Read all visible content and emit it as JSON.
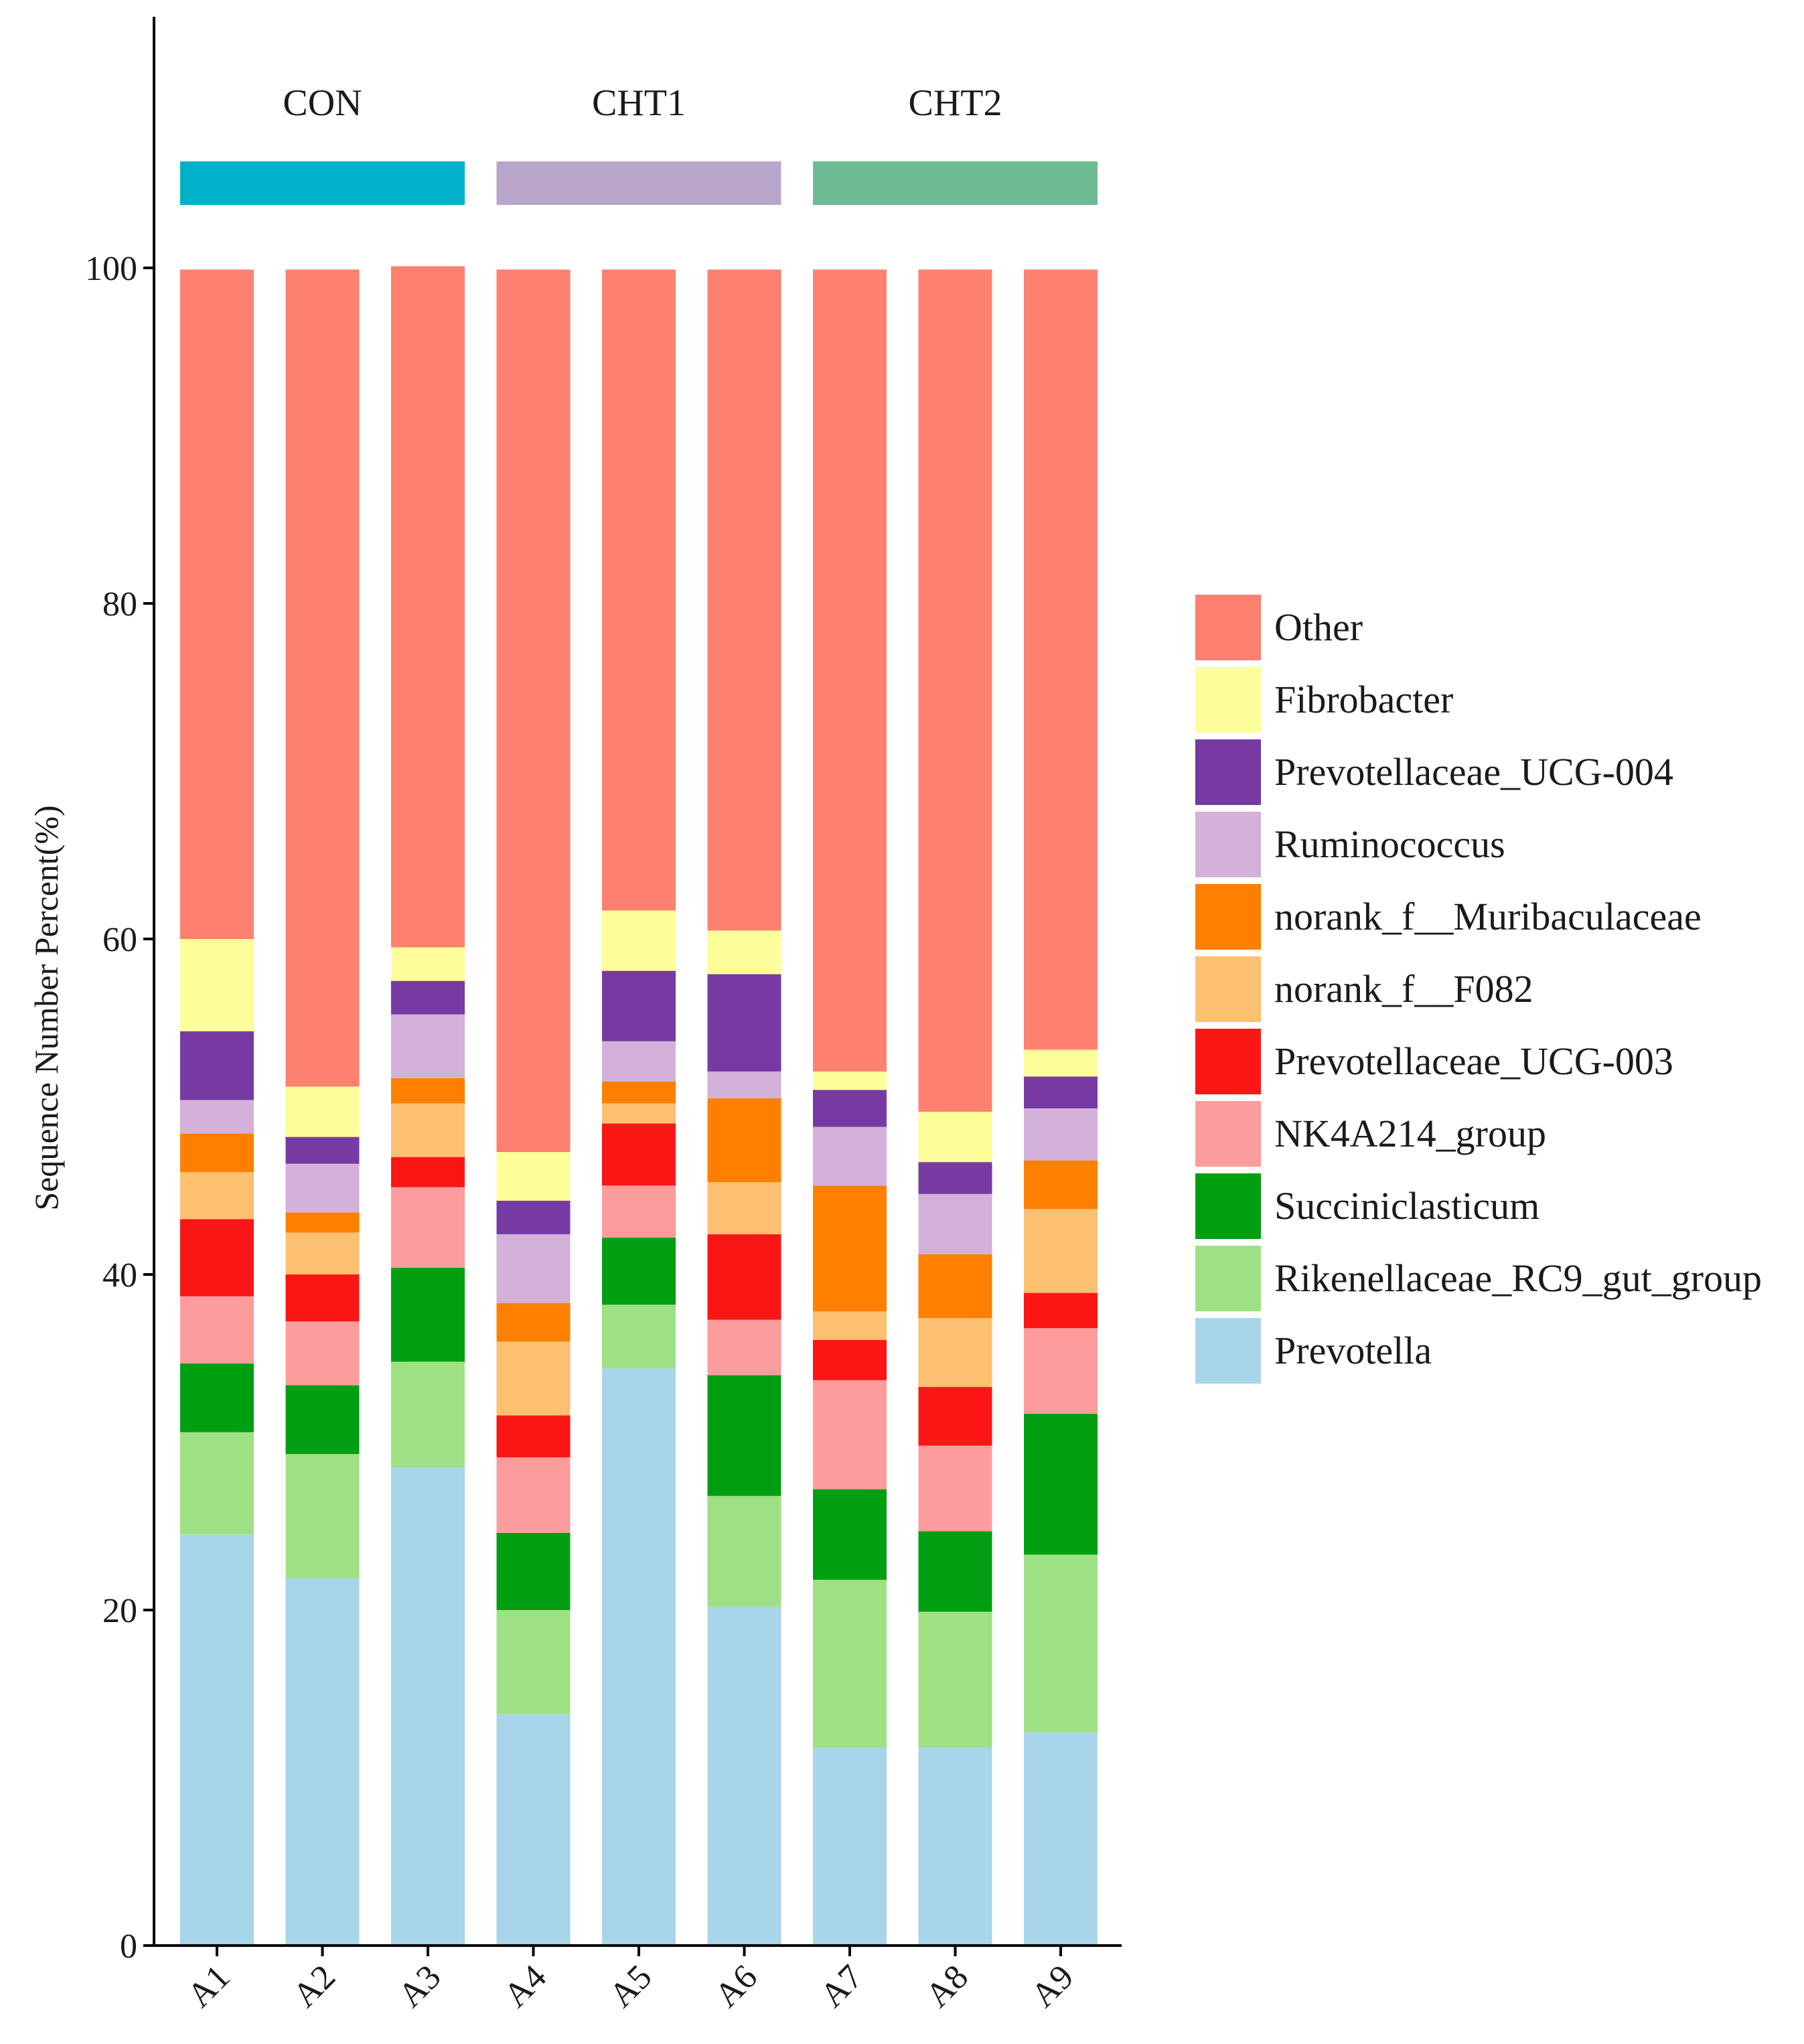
{
  "chart_data": {
    "type": "bar",
    "stacked": true,
    "title": "",
    "xlabel": "",
    "ylabel": "Sequence Number Percent(%)",
    "ylim": [
      0,
      100
    ],
    "yticks": [
      0,
      20,
      40,
      60,
      80,
      100
    ],
    "categories": [
      "A1",
      "A2",
      "A3",
      "A4",
      "A5",
      "A6",
      "A7",
      "A8",
      "A9"
    ],
    "groups": [
      {
        "name": "CON",
        "members": [
          "A1",
          "A2",
          "A3"
        ],
        "color": "#00B2C9"
      },
      {
        "name": "CHT1",
        "members": [
          "A4",
          "A5",
          "A6"
        ],
        "color": "#BAA5CA"
      },
      {
        "name": "CHT2",
        "members": [
          "A7",
          "A8",
          "A9"
        ],
        "color": "#6DBB92"
      }
    ],
    "legend_position": "right",
    "series": [
      {
        "name": "Prevotella",
        "color": "#A8D5EA",
        "values": [
          24.5,
          21.9,
          28.5,
          13.8,
          34.4,
          20.2,
          11.8,
          11.8,
          12.7
        ]
      },
      {
        "name": "Rikenellaceae_RC9_gut_group",
        "color": "#9EE184",
        "values": [
          6.1,
          7.4,
          6.3,
          6.2,
          3.8,
          6.6,
          10.0,
          8.1,
          10.6
        ]
      },
      {
        "name": "Succiniclasticum",
        "color": "#009F12",
        "values": [
          4.1,
          4.1,
          5.6,
          4.6,
          4.0,
          7.2,
          5.4,
          4.8,
          8.4
        ]
      },
      {
        "name": "NK4A214_group",
        "color": "#FD9C9C",
        "values": [
          4.0,
          3.8,
          4.8,
          4.5,
          3.1,
          3.3,
          6.5,
          5.1,
          5.1
        ]
      },
      {
        "name": "Prevotellaceae_UCG-003",
        "color": "#FB1616",
        "values": [
          4.6,
          2.8,
          1.8,
          2.5,
          3.7,
          5.1,
          2.4,
          3.5,
          2.1
        ]
      },
      {
        "name": "norank_f__F082",
        "color": "#FDBF70",
        "values": [
          2.8,
          2.5,
          3.2,
          4.4,
          1.2,
          3.1,
          1.7,
          4.1,
          5.0
        ]
      },
      {
        "name": "norank_f__Muribaculaceae",
        "color": "#FF7F00",
        "values": [
          2.3,
          1.2,
          1.5,
          2.3,
          1.3,
          5.0,
          7.5,
          3.8,
          2.9
        ]
      },
      {
        "name": "Ruminococcus",
        "color": "#D3B1DA",
        "values": [
          2.0,
          2.9,
          3.8,
          4.1,
          2.4,
          1.6,
          3.5,
          3.6,
          3.1
        ]
      },
      {
        "name": "Prevotellaceae_UCG-004",
        "color": "#773AA2",
        "values": [
          4.1,
          1.6,
          2.0,
          2.0,
          4.2,
          5.8,
          2.2,
          1.9,
          1.9
        ]
      },
      {
        "name": "Fibrobacter",
        "color": "#FDFD99",
        "values": [
          5.5,
          3.0,
          2.0,
          2.9,
          3.6,
          2.6,
          1.1,
          3.0,
          1.6
        ]
      },
      {
        "name": "Other",
        "color": "#FD8070",
        "values": [
          39.9,
          48.7,
          40.6,
          52.6,
          38.2,
          39.4,
          47.8,
          50.2,
          46.5
        ]
      }
    ]
  }
}
